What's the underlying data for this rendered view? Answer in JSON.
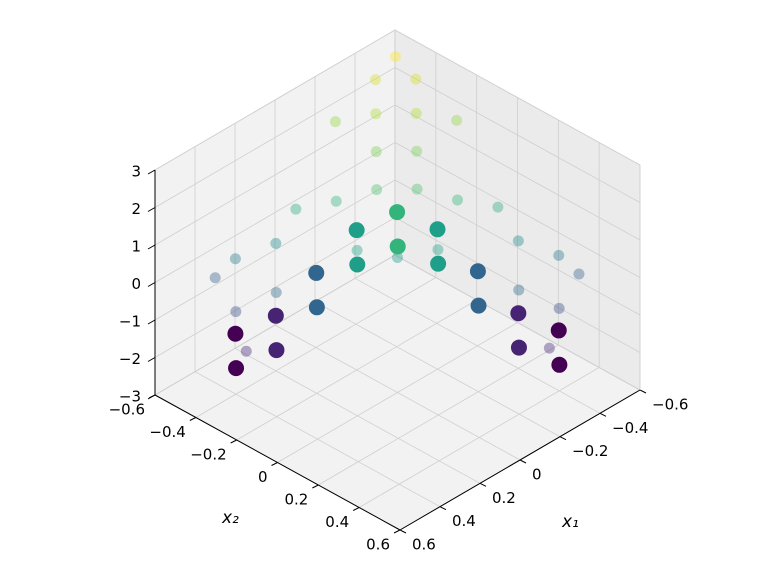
{
  "chart_data": {
    "type": "scatter3d",
    "colormap": "viridis",
    "xlabel": "x₁",
    "ylabel": "x₂",
    "x1lim": [
      -0.6,
      0.6
    ],
    "x2lim": [
      -0.6,
      0.6
    ],
    "zlim": [
      -3,
      3
    ],
    "x1ticks": [
      {
        "value": -0.6,
        "label": "−0.6"
      },
      {
        "value": -0.4,
        "label": "−0.4"
      },
      {
        "value": -0.2,
        "label": "−0.2"
      },
      0.0,
      0.2,
      0.4,
      0.6
    ],
    "x2ticks": [
      {
        "value": -0.6,
        "label": "−0.6"
      },
      {
        "value": -0.4,
        "label": "−0.4"
      },
      {
        "value": -0.2,
        "label": "−0.2"
      },
      0.0,
      0.2,
      0.4,
      0.6
    ],
    "zticks": [
      {
        "value": -3,
        "label": "−3"
      },
      {
        "value": -2,
        "label": "−2"
      },
      {
        "value": -1,
        "label": "−1"
      },
      0,
      1,
      2,
      3
    ],
    "grid": true,
    "series": [
      {
        "alpha": 0.4,
        "x1": [
          -0.5,
          -0.4,
          -0.5,
          -0.3,
          -0.4,
          -0.3,
          -0.2,
          -0.2,
          -0.1,
          0,
          -0.3,
          0.1,
          -0.4,
          0.2,
          -0.4,
          0.3,
          -0.5,
          0.3,
          -0.3,
          0.4,
          -0.4,
          0.45,
          -0.3,
          0.1,
          -0.1,
          -0.5,
          -0.2,
          0.35,
          -0.55,
          0
        ],
        "x2": [
          -0.5,
          -0.5,
          -0.4,
          -0.4,
          -0.3,
          -0.2,
          -0.3,
          -0.1,
          -0.2,
          -0.3,
          0,
          -0.4,
          0.1,
          -0.4,
          0.2,
          -0.5,
          0.3,
          -0.3,
          0.3,
          -0.4,
          0.4,
          -0.3,
          0.45,
          -0.1,
          0.1,
          -0.2,
          -0.5,
          -0.55,
          0.35,
          0
        ],
        "z": [
          2.9,
          2.6,
          2.6,
          2.3,
          2.3,
          1.9,
          1.9,
          1.5,
          1.5,
          1.2,
          1.2,
          1.0,
          1.0,
          0.4,
          0.4,
          0.0,
          0.0,
          -0.3,
          -0.3,
          -0.8,
          -0.8,
          -1.4,
          -1.4,
          0.8,
          0.8,
          2.1,
          2.1,
          -0.5,
          -0.5,
          0.6
        ]
      },
      {
        "alpha": 1,
        "x1": [
          0.3,
          0.2,
          0.1,
          0,
          -0.1,
          -0.2,
          -0.3,
          -0.4,
          -0.5,
          0.45,
          0.35,
          0.25,
          0.15,
          0.05,
          -0.05,
          -0.15,
          -0.25,
          -0.35
        ],
        "x2": [
          -0.5,
          -0.4,
          -0.3,
          -0.2,
          -0.1,
          0,
          0.1,
          0.2,
          0.3,
          -0.35,
          -0.25,
          -0.15,
          -0.05,
          0.05,
          0.15,
          0.25,
          0.35,
          0.45
        ],
        "z": [
          -2.0,
          -1.53,
          -0.4,
          0.73,
          1.2,
          0.73,
          -0.4,
          -1.53,
          -2.0,
          -2.0,
          -1.53,
          -0.4,
          0.73,
          1.2,
          0.73,
          -0.4,
          -1.53,
          -2.0
        ]
      }
    ]
  }
}
